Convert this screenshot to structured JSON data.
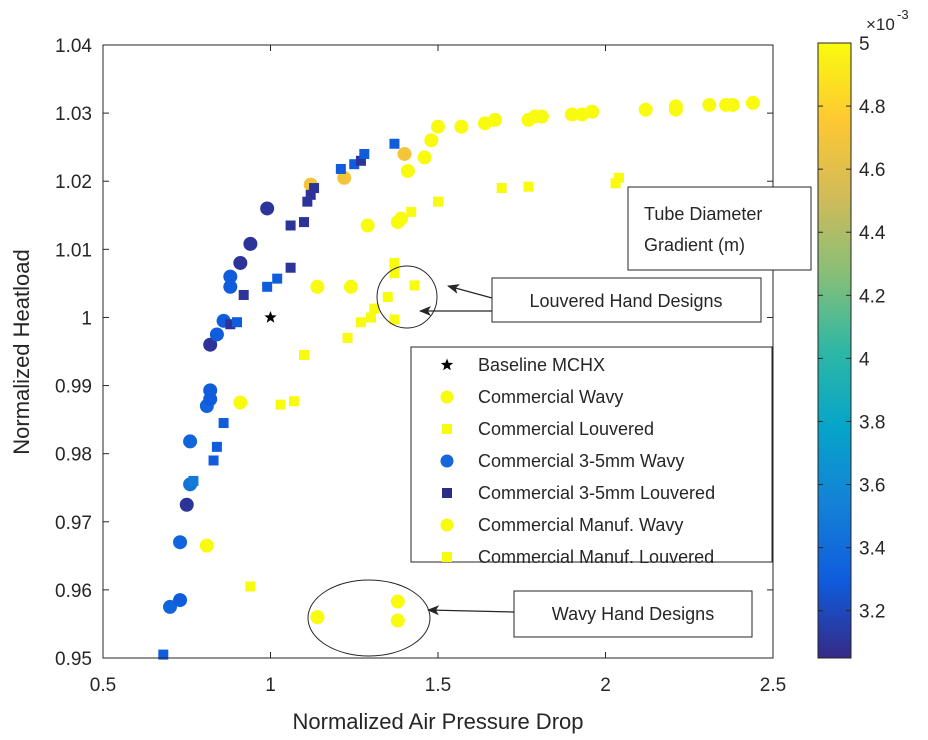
{
  "chart_data": {
    "type": "scatter",
    "title": "",
    "xlabel": "Normalized Air Pressure Drop",
    "ylabel": "Normalized Heatload",
    "xlim": [
      0.5,
      2.5
    ],
    "ylim": [
      0.95,
      1.04
    ],
    "xticks": [
      "0.5",
      "1",
      "1.5",
      "2",
      "2.5"
    ],
    "yticks": [
      "0.95",
      "0.96",
      "0.97",
      "0.98",
      "0.99",
      "1",
      "1.01",
      "1.02",
      "1.03",
      "1.04"
    ],
    "grid": false,
    "legend_position": "center-right",
    "colorbar": {
      "label_lines": [
        "Tube Diameter",
        "Gradient (m)"
      ],
      "exponent_base": "×10",
      "exponent_power": "-3",
      "range": [
        3.05,
        5.0
      ],
      "ticks": [
        "3.2",
        "3.4",
        "3.6",
        "3.8",
        "4",
        "4.2",
        "4.4",
        "4.6",
        "4.8",
        "5"
      ],
      "colormap_stops": [
        "#352a87",
        "#0f5cdd",
        "#1481d6",
        "#06a4ca",
        "#2eb7a4",
        "#87bf77",
        "#d1bb59",
        "#fec832",
        "#f9fb0e"
      ]
    },
    "series": [
      {
        "name": "Baseline MCHX",
        "marker": "star",
        "points": [
          [
            1.0,
            1.0,
            5.0
          ]
        ]
      },
      {
        "name": "Commercial Wavy",
        "marker": "circle",
        "points": [
          [
            1.29,
            1.0135,
            5.0
          ],
          [
            1.38,
            1.014,
            5.0
          ],
          [
            1.39,
            1.0145,
            5.0
          ],
          [
            1.41,
            1.0215,
            5.0
          ],
          [
            1.46,
            1.0235,
            5.0
          ],
          [
            1.48,
            1.026,
            5.0
          ],
          [
            1.5,
            1.028,
            5.0
          ],
          [
            1.57,
            1.028,
            5.0
          ],
          [
            1.64,
            1.0285,
            5.0
          ],
          [
            1.67,
            1.029,
            5.0
          ],
          [
            1.77,
            1.029,
            5.0
          ],
          [
            1.79,
            1.0295,
            5.0
          ],
          [
            1.81,
            1.0295,
            5.0
          ],
          [
            1.9,
            1.0298,
            5.0
          ],
          [
            1.93,
            1.0298,
            5.0
          ],
          [
            1.96,
            1.0302,
            5.0
          ],
          [
            2.12,
            1.0305,
            5.0
          ],
          [
            2.21,
            1.0305,
            5.0
          ],
          [
            2.21,
            1.031,
            5.0
          ],
          [
            2.31,
            1.0312,
            5.0
          ],
          [
            2.36,
            1.0312,
            5.0
          ],
          [
            2.38,
            1.0312,
            5.0
          ],
          [
            2.44,
            1.0315,
            5.0
          ],
          [
            1.14,
            1.0045,
            5.0
          ],
          [
            1.24,
            1.0045,
            5.0
          ],
          [
            0.91,
            0.9875,
            5.0
          ],
          [
            0.81,
            0.9665,
            5.0
          ]
        ]
      },
      {
        "name": "Commercial Louvered",
        "marker": "square",
        "points": [
          [
            1.1,
            0.9945,
            5.0
          ],
          [
            1.23,
            0.997,
            5.0
          ],
          [
            1.27,
            0.9993,
            5.0
          ],
          [
            1.3,
            1.0,
            5.0
          ],
          [
            1.31,
            1.0013,
            5.0
          ],
          [
            1.35,
            1.003,
            5.0
          ],
          [
            1.37,
            1.0065,
            5.0
          ],
          [
            1.37,
            1.008,
            5.0
          ],
          [
            1.37,
            0.9997,
            5.0
          ],
          [
            1.43,
            1.0047,
            5.0
          ],
          [
            1.42,
            1.0155,
            5.0
          ],
          [
            1.5,
            1.017,
            5.0
          ],
          [
            1.69,
            1.019,
            5.0
          ],
          [
            1.77,
            1.0192,
            5.0
          ],
          [
            2.03,
            1.0197,
            5.0
          ],
          [
            2.04,
            1.0205,
            5.0
          ],
          [
            1.03,
            0.9872,
            5.0
          ],
          [
            1.07,
            0.9877,
            5.0
          ],
          [
            0.94,
            0.9605,
            5.0
          ]
        ]
      },
      {
        "name": "Commercial 3-5mm Wavy",
        "marker": "circle",
        "points": [
          [
            0.7,
            0.9575,
            3.35
          ],
          [
            0.73,
            0.9585,
            3.3
          ],
          [
            0.73,
            0.967,
            3.35
          ],
          [
            0.75,
            0.9725,
            3.1
          ],
          [
            0.76,
            0.9755,
            3.45
          ],
          [
            0.76,
            0.9818,
            3.35
          ],
          [
            0.81,
            0.987,
            3.35
          ],
          [
            0.82,
            0.988,
            3.3
          ],
          [
            0.82,
            0.9893,
            3.3
          ],
          [
            0.82,
            0.996,
            3.1
          ],
          [
            0.84,
            0.9975,
            3.3
          ],
          [
            0.86,
            0.9995,
            3.3
          ],
          [
            0.88,
            1.0045,
            3.3
          ],
          [
            0.88,
            1.006,
            3.3
          ],
          [
            0.91,
            1.008,
            3.1
          ],
          [
            0.94,
            1.0108,
            3.1
          ],
          [
            0.99,
            1.016,
            3.1
          ],
          [
            1.12,
            1.0195,
            4.7
          ],
          [
            1.22,
            1.0205,
            4.7
          ],
          [
            1.4,
            1.024,
            4.7
          ]
        ]
      },
      {
        "name": "Commercial 3-5mm Louvered",
        "marker": "square",
        "points": [
          [
            0.68,
            0.9505,
            3.3
          ],
          [
            0.77,
            0.976,
            3.5
          ],
          [
            0.83,
            0.979,
            3.3
          ],
          [
            0.84,
            0.981,
            3.3
          ],
          [
            0.86,
            0.9845,
            3.3
          ],
          [
            0.88,
            0.999,
            3.1
          ],
          [
            0.9,
            0.9993,
            3.3
          ],
          [
            0.92,
            1.0033,
            3.1
          ],
          [
            0.99,
            1.0045,
            3.3
          ],
          [
            1.02,
            1.0057,
            3.3
          ],
          [
            1.06,
            1.0073,
            3.1
          ],
          [
            1.06,
            1.0135,
            3.1
          ],
          [
            1.1,
            1.014,
            3.1
          ],
          [
            1.11,
            1.017,
            3.1
          ],
          [
            1.12,
            1.018,
            3.1
          ],
          [
            1.13,
            1.019,
            3.1
          ],
          [
            1.21,
            1.0218,
            3.3
          ],
          [
            1.25,
            1.0225,
            3.3
          ],
          [
            1.27,
            1.023,
            3.1
          ],
          [
            1.28,
            1.024,
            3.3
          ],
          [
            1.37,
            1.0255,
            3.3
          ]
        ]
      },
      {
        "name": "Commercial Manuf. Wavy",
        "marker": "circle",
        "points": [
          [
            1.14,
            0.956,
            5.0
          ],
          [
            1.38,
            0.9583,
            5.0
          ],
          [
            1.38,
            0.9555,
            5.0
          ]
        ]
      },
      {
        "name": "Commercial Manuf. Louvered",
        "marker": "square",
        "points": []
      }
    ],
    "annotations": [
      {
        "text": "Louvered Hand Designs"
      },
      {
        "text": "Wavy Hand Designs"
      }
    ]
  }
}
